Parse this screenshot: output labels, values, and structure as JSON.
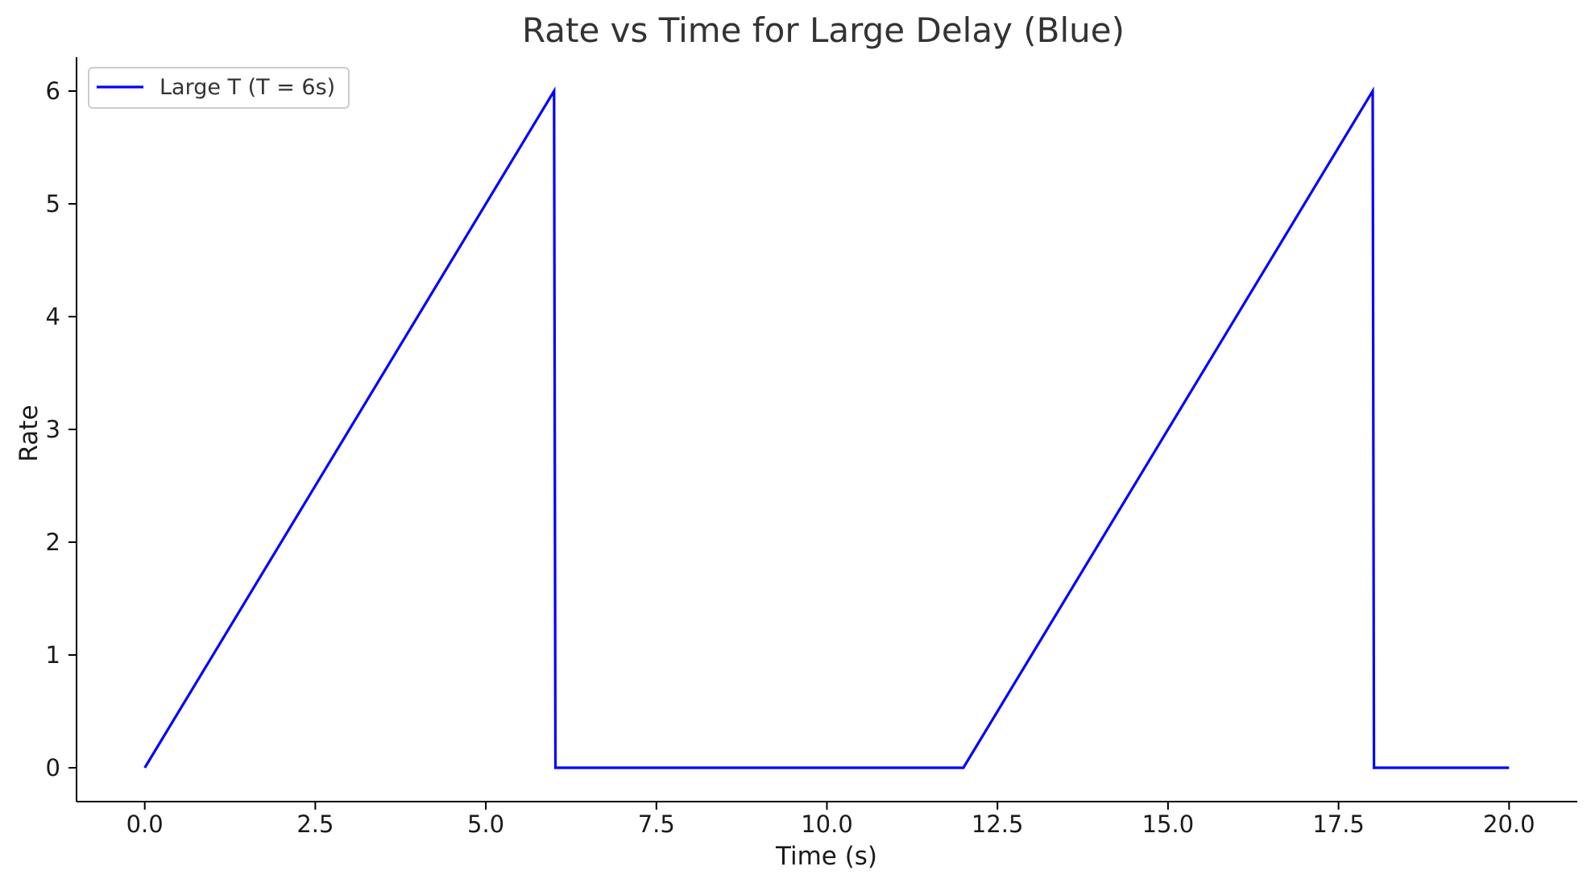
{
  "chart_data": {
    "type": "line",
    "title": "Rate vs Time for Large Delay (Blue)",
    "xlabel": "Time (s)",
    "ylabel": "Rate",
    "xlim": [
      -1.0,
      21.0
    ],
    "ylim": [
      -0.3,
      6.3
    ],
    "xticks": [
      0,
      2.5,
      5,
      7.5,
      10,
      12.5,
      15,
      17.5,
      20
    ],
    "xtick_labels": [
      "0.0",
      "2.5",
      "5.0",
      "7.5",
      "10.0",
      "12.5",
      "15.0",
      "17.5",
      "20.0"
    ],
    "yticks": [
      0,
      1,
      2,
      3,
      4,
      5,
      6
    ],
    "ytick_labels": [
      "0",
      "1",
      "2",
      "3",
      "4",
      "5",
      "6"
    ],
    "grid": false,
    "legend_position": "top-left",
    "series": [
      {
        "name": "Large T (T = 6s)",
        "color": "#0000ff",
        "x": [
          0,
          6,
          6.02,
          12,
          18,
          18.02,
          20
        ],
        "y": [
          0,
          6,
          0,
          0,
          6,
          0,
          0
        ]
      }
    ]
  }
}
